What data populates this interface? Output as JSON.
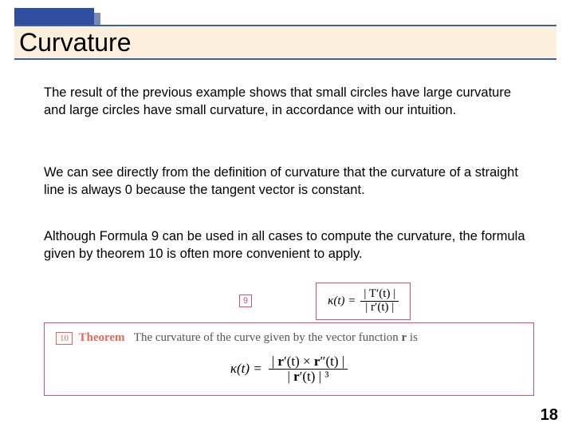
{
  "colors": {
    "block_back": "#7a8ab6",
    "block_front": "#2f4f9e",
    "band_bg": "#fcefdc",
    "band_border": "#3d5fa8",
    "badge9": "#d94b82",
    "badge10": "#e0685c",
    "theorem_border": "#d94b82"
  },
  "title": "Curvature",
  "paragraphs": {
    "p1": "The result of the previous example shows that small circles have large curvature and large circles have small curvature, in accordance with our intuition.",
    "p2": "We can see directly from the definition of curvature that the curvature of a straight line is always 0 because the tangent vector is constant.",
    "p3": "Although Formula 9 can be used in all cases to compute the curvature, the formula given by theorem 10 is often more convenient to apply."
  },
  "formula9": {
    "badge": "9",
    "lhs": "κ(t) =",
    "num": "| T′(t) |",
    "den": "| r′(t) |"
  },
  "theorem10": {
    "badge": "10",
    "label": "Theorem",
    "statement_pre": "The curvature of the curve given by the vector function ",
    "statement_r": "r",
    "statement_post": " is",
    "lhs": "κ(t)  =",
    "num_pre": "| ",
    "num_r1": "r",
    "num_mid1": "′(t) × ",
    "num_r2": "r",
    "num_mid2": "″(t) |",
    "den_pre": "| ",
    "den_r": "r",
    "den_post": "′(t) | ³"
  },
  "page_number": "18"
}
